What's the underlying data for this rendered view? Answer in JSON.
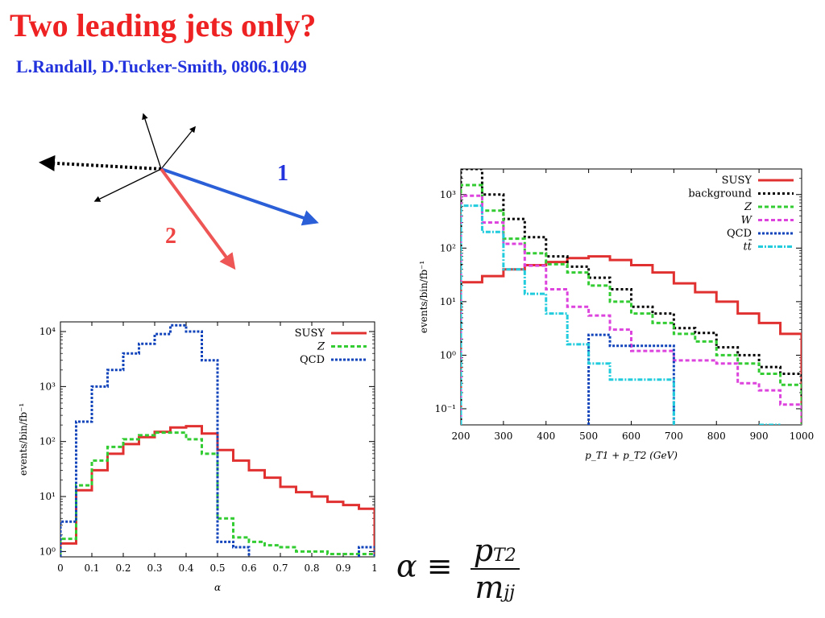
{
  "slide": {
    "title": "Two leading jets only?",
    "reference": "L.Randall, D.Tucker-Smith, 0806.1049"
  },
  "diagram": {
    "label_1": "1",
    "label_2": "2",
    "colors": {
      "jet1": "#2b5fd8",
      "jet2": "#ee5555",
      "met": "#000000",
      "other": "#000000"
    }
  },
  "formula": {
    "lhs": "α ≡",
    "numerator": "p",
    "numerator_sub": "T2",
    "denominator": "m",
    "denominator_sub": "jj"
  },
  "chart_data": [
    {
      "type": "line",
      "step": true,
      "log_y": true,
      "xlabel": "p_T1 + p_T2 (GeV)",
      "ylabel": "events/bin/fb⁻¹",
      "xlim": [
        200,
        1000
      ],
      "ylim": [
        0.05,
        3000
      ],
      "xticks": [
        "200",
        "300",
        "400",
        "500",
        "600",
        "700",
        "800",
        "900",
        "1000"
      ],
      "yticks": [
        "10⁻¹",
        "10⁰",
        "10¹",
        "10²",
        "10³"
      ],
      "legend": "top-right",
      "bin_edges": [
        200,
        250,
        300,
        350,
        400,
        450,
        500,
        550,
        600,
        650,
        700,
        750,
        800,
        850,
        900,
        950,
        1000
      ],
      "series": [
        {
          "name": "SUSY",
          "color": "#e03030",
          "dash": "none",
          "values": [
            23,
            30,
            40,
            48,
            55,
            65,
            70,
            60,
            48,
            35,
            22,
            15,
            10,
            6,
            4,
            2.5
          ]
        },
        {
          "name": "background",
          "color": "#000000",
          "dash": "3,3",
          "values": [
            3000,
            1000,
            350,
            160,
            70,
            45,
            28,
            17,
            8,
            6,
            3.2,
            2.6,
            1.4,
            1.0,
            0.6,
            0.45
          ]
        },
        {
          "name": "Z",
          "color": "#33cc33",
          "dash": "5,3",
          "values": [
            1500,
            500,
            150,
            80,
            50,
            35,
            20,
            10,
            6,
            4,
            2.5,
            1.8,
            1.0,
            0.7,
            0.45,
            0.28
          ]
        },
        {
          "name": "W",
          "color": "#dd44dd",
          "dash": "5,3",
          "values": [
            950,
            300,
            120,
            47,
            17,
            8,
            5.5,
            3,
            1.2,
            1.2,
            0.8,
            0.8,
            0.7,
            0.3,
            0.22,
            0.12
          ]
        },
        {
          "name": "QCD",
          "color": "#1144bb",
          "dash": "3,2",
          "values": [
            null,
            null,
            null,
            null,
            null,
            null,
            2.4,
            1.5,
            1.5,
            1.5,
            null,
            null,
            null,
            null,
            null,
            null
          ]
        },
        {
          "name": "tt̄",
          "color": "#22ccdd",
          "dash": "6,2,2,2",
          "values": [
            620,
            200,
            40,
            14,
            6,
            1.6,
            0.7,
            0.35,
            0.35,
            0.35,
            null,
            null,
            null,
            null,
            0.05,
            null
          ]
        }
      ]
    },
    {
      "type": "line",
      "step": true,
      "log_y": true,
      "xlabel": "α",
      "ylabel": "events/bin/fb⁻¹",
      "xlim": [
        0,
        1
      ],
      "ylim": [
        0.8,
        15000
      ],
      "xticks": [
        "0",
        "0.1",
        "0.2",
        "0.3",
        "0.4",
        "0.5",
        "0.6",
        "0.7",
        "0.8",
        "0.9",
        "1"
      ],
      "yticks": [
        "10⁰",
        "10¹",
        "10²",
        "10³",
        "10⁴"
      ],
      "legend": "top-right",
      "bin_edges": [
        0,
        0.05,
        0.1,
        0.15,
        0.2,
        0.25,
        0.3,
        0.35,
        0.4,
        0.45,
        0.5,
        0.55,
        0.6,
        0.65,
        0.7,
        0.75,
        0.8,
        0.85,
        0.9,
        0.95,
        1.0
      ],
      "series": [
        {
          "name": "SUSY",
          "color": "#e03030",
          "dash": "none",
          "values": [
            1.4,
            13,
            30,
            60,
            90,
            120,
            150,
            180,
            190,
            140,
            70,
            45,
            30,
            22,
            15,
            12,
            10,
            8,
            7,
            6
          ]
        },
        {
          "name": "Z",
          "color": "#33cc33",
          "dash": "5,3",
          "values": [
            1.7,
            16,
            45,
            80,
            110,
            130,
            145,
            145,
            110,
            60,
            4,
            1.8,
            1.5,
            1.3,
            1.2,
            1.0,
            1.0,
            0.9,
            0.9,
            0.9
          ]
        },
        {
          "name": "QCD",
          "color": "#1144bb",
          "dash": "3,2",
          "values": [
            3.5,
            230,
            1000,
            2000,
            4000,
            6000,
            9000,
            13000,
            10000,
            3000,
            1.5,
            1.2,
            null,
            null,
            null,
            null,
            null,
            null,
            null,
            1.2
          ]
        }
      ]
    }
  ]
}
